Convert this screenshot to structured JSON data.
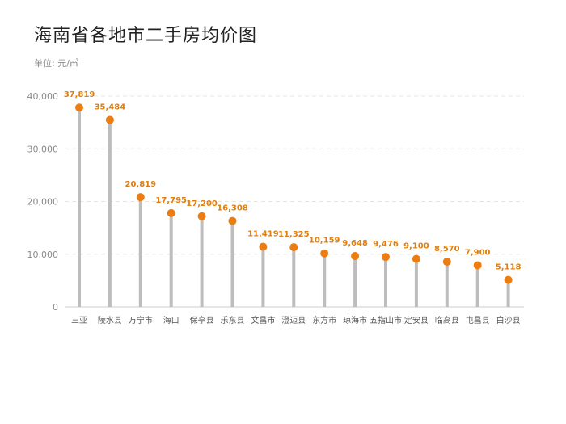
{
  "chart_data": {
    "type": "lollipop",
    "title": "海南省各地市二手房均价图",
    "unit": "单位: 元/㎡",
    "categories": [
      "三亚",
      "陵水县",
      "万宁市",
      "海口",
      "保亭县",
      "乐东县",
      "文昌市",
      "澄迈县",
      "东方市",
      "琼海市",
      "五指山市",
      "定安县",
      "临高县",
      "屯昌县",
      "白沙县"
    ],
    "values": [
      37819,
      35484,
      20819,
      17795,
      17200,
      16308,
      11419,
      11325,
      10159,
      9648,
      9476,
      9100,
      8570,
      7900,
      5118
    ],
    "value_labels": [
      "37,819",
      "35,484",
      "20,819",
      "17,795",
      "17,200",
      "16,308",
      "11,419",
      "11,325",
      "10,159",
      "9,648",
      "9,476",
      "9,100",
      "8,570",
      "7,900",
      "5,118"
    ],
    "y_ticks": [
      0,
      10000,
      20000,
      30000,
      40000
    ],
    "y_tick_labels": [
      "0",
      "10,000",
      "20,000",
      "30,000",
      "40,000"
    ],
    "ylim": [
      0,
      40000
    ],
    "grid": true,
    "legend": "none",
    "colors": {
      "dot": "#ec7d12",
      "stem": "#bdbdbd",
      "value_label": "#e07f10"
    }
  }
}
